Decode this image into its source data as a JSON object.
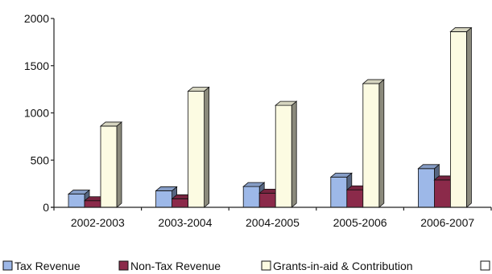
{
  "chart_data": {
    "type": "bar",
    "style": "3d-clustered",
    "categories": [
      "2002-2003",
      "2003-2004",
      "2004-2005",
      "2005-2006",
      "2006-2007"
    ],
    "series": [
      {
        "name": "Tax Revenue",
        "color": "#9db8e8",
        "values": [
          140,
          175,
          220,
          320,
          410
        ]
      },
      {
        "name": "Non-Tax Revenue",
        "color": "#8b2a4a",
        "values": [
          70,
          90,
          150,
          185,
          290
        ]
      },
      {
        "name": "Grants-in-aid & Contribution",
        "color": "#fcfbe2",
        "values": [
          860,
          1230,
          1080,
          1310,
          1860
        ]
      }
    ],
    "legend_extra_label": "",
    "yticks": [
      "0",
      "500",
      "1000",
      "1500",
      "2000"
    ],
    "ylim": [
      0,
      2000
    ],
    "grid": false,
    "legend_position": "bottom",
    "title": "",
    "xlabel": "",
    "ylabel": ""
  }
}
